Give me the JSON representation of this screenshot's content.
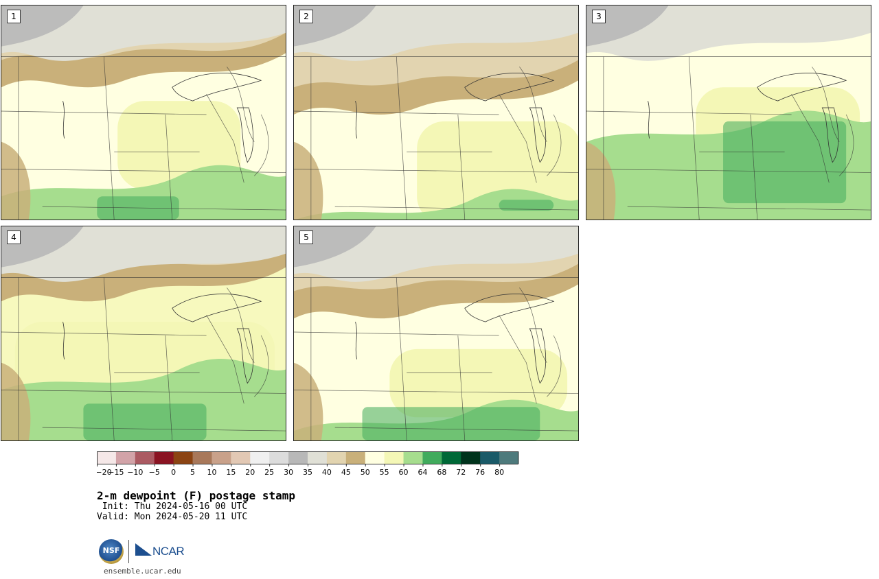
{
  "panels": [
    {
      "label": "1",
      "dominant": "#ffffe1",
      "moist": "#a6dd8e",
      "dry": "#c9b07a"
    },
    {
      "label": "2",
      "dominant": "#ffffe1",
      "moist": "#a6dd8e",
      "dry": "#c9b07a"
    },
    {
      "label": "3",
      "dominant": "#ffffe1",
      "moist": "#a6dd8e",
      "dry": "#c9b07a"
    },
    {
      "label": "4",
      "dominant": "#f7f9be",
      "moist": "#a6dd8e",
      "dry": "#c9b07a"
    },
    {
      "label": "5",
      "dominant": "#ffffe1",
      "moist": "#a6dd8e",
      "dry": "#c9b07a"
    }
  ],
  "colorbar": {
    "colors": [
      "#f5e8e8",
      "#d2a3a8",
      "#ab5a62",
      "#8a1322",
      "#8b4413",
      "#a8785a",
      "#c9a18a",
      "#e2c8b4",
      "#f0f0f0",
      "#dcdcdc",
      "#b8b8b8",
      "#e0e0d6",
      "#e2d4b0",
      "#c9b07a",
      "#ffffe1",
      "#f4f7b6",
      "#a6dd8e",
      "#41ab5d",
      "#006837",
      "#00331c",
      "#1a5a68",
      "#4e7a7c"
    ],
    "ticks": [
      "−20",
      "−15",
      "−10",
      "−5",
      "0",
      "5",
      "10",
      "15",
      "20",
      "25",
      "30",
      "35",
      "40",
      "45",
      "50",
      "55",
      "60",
      "64",
      "68",
      "72",
      "76",
      "80"
    ]
  },
  "title": "2-m dewpoint (F) postage stamp",
  "init": " Init: Thu 2024-05-16 00 UTC",
  "valid": "Valid: Mon 2024-05-20 11 UTC",
  "logos": {
    "nsf": "NSF",
    "ncar": "NCAR"
  },
  "url": "ensemble.ucar.edu"
}
